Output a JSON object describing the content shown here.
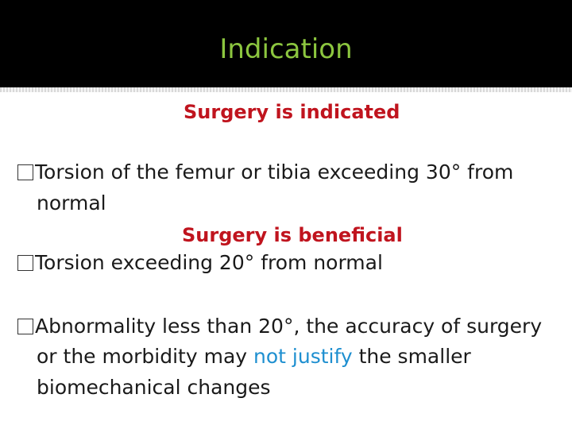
{
  "title": "Indication",
  "heading1": "Surgery is indicated",
  "bullet1": {
    "line1": "Torsion of the femur or tibia exceeding 30° from",
    "line2": "normal"
  },
  "heading2": "Surgery is beneficial",
  "bullet2": {
    "line1": "Torsion exceeding 20° from normal"
  },
  "bullet3": {
    "line1": "Abnormality less than 20°, the accuracy of surgery",
    "line2_before": "or the morbidity may ",
    "line2_highlight": "not justify",
    "line2_after": " the smaller",
    "line3": "biomechanical changes"
  },
  "colors": {
    "title": "#8cc63f",
    "heading": "#c0141e",
    "highlight": "#1e8fd0",
    "title_bar": "#000000"
  }
}
